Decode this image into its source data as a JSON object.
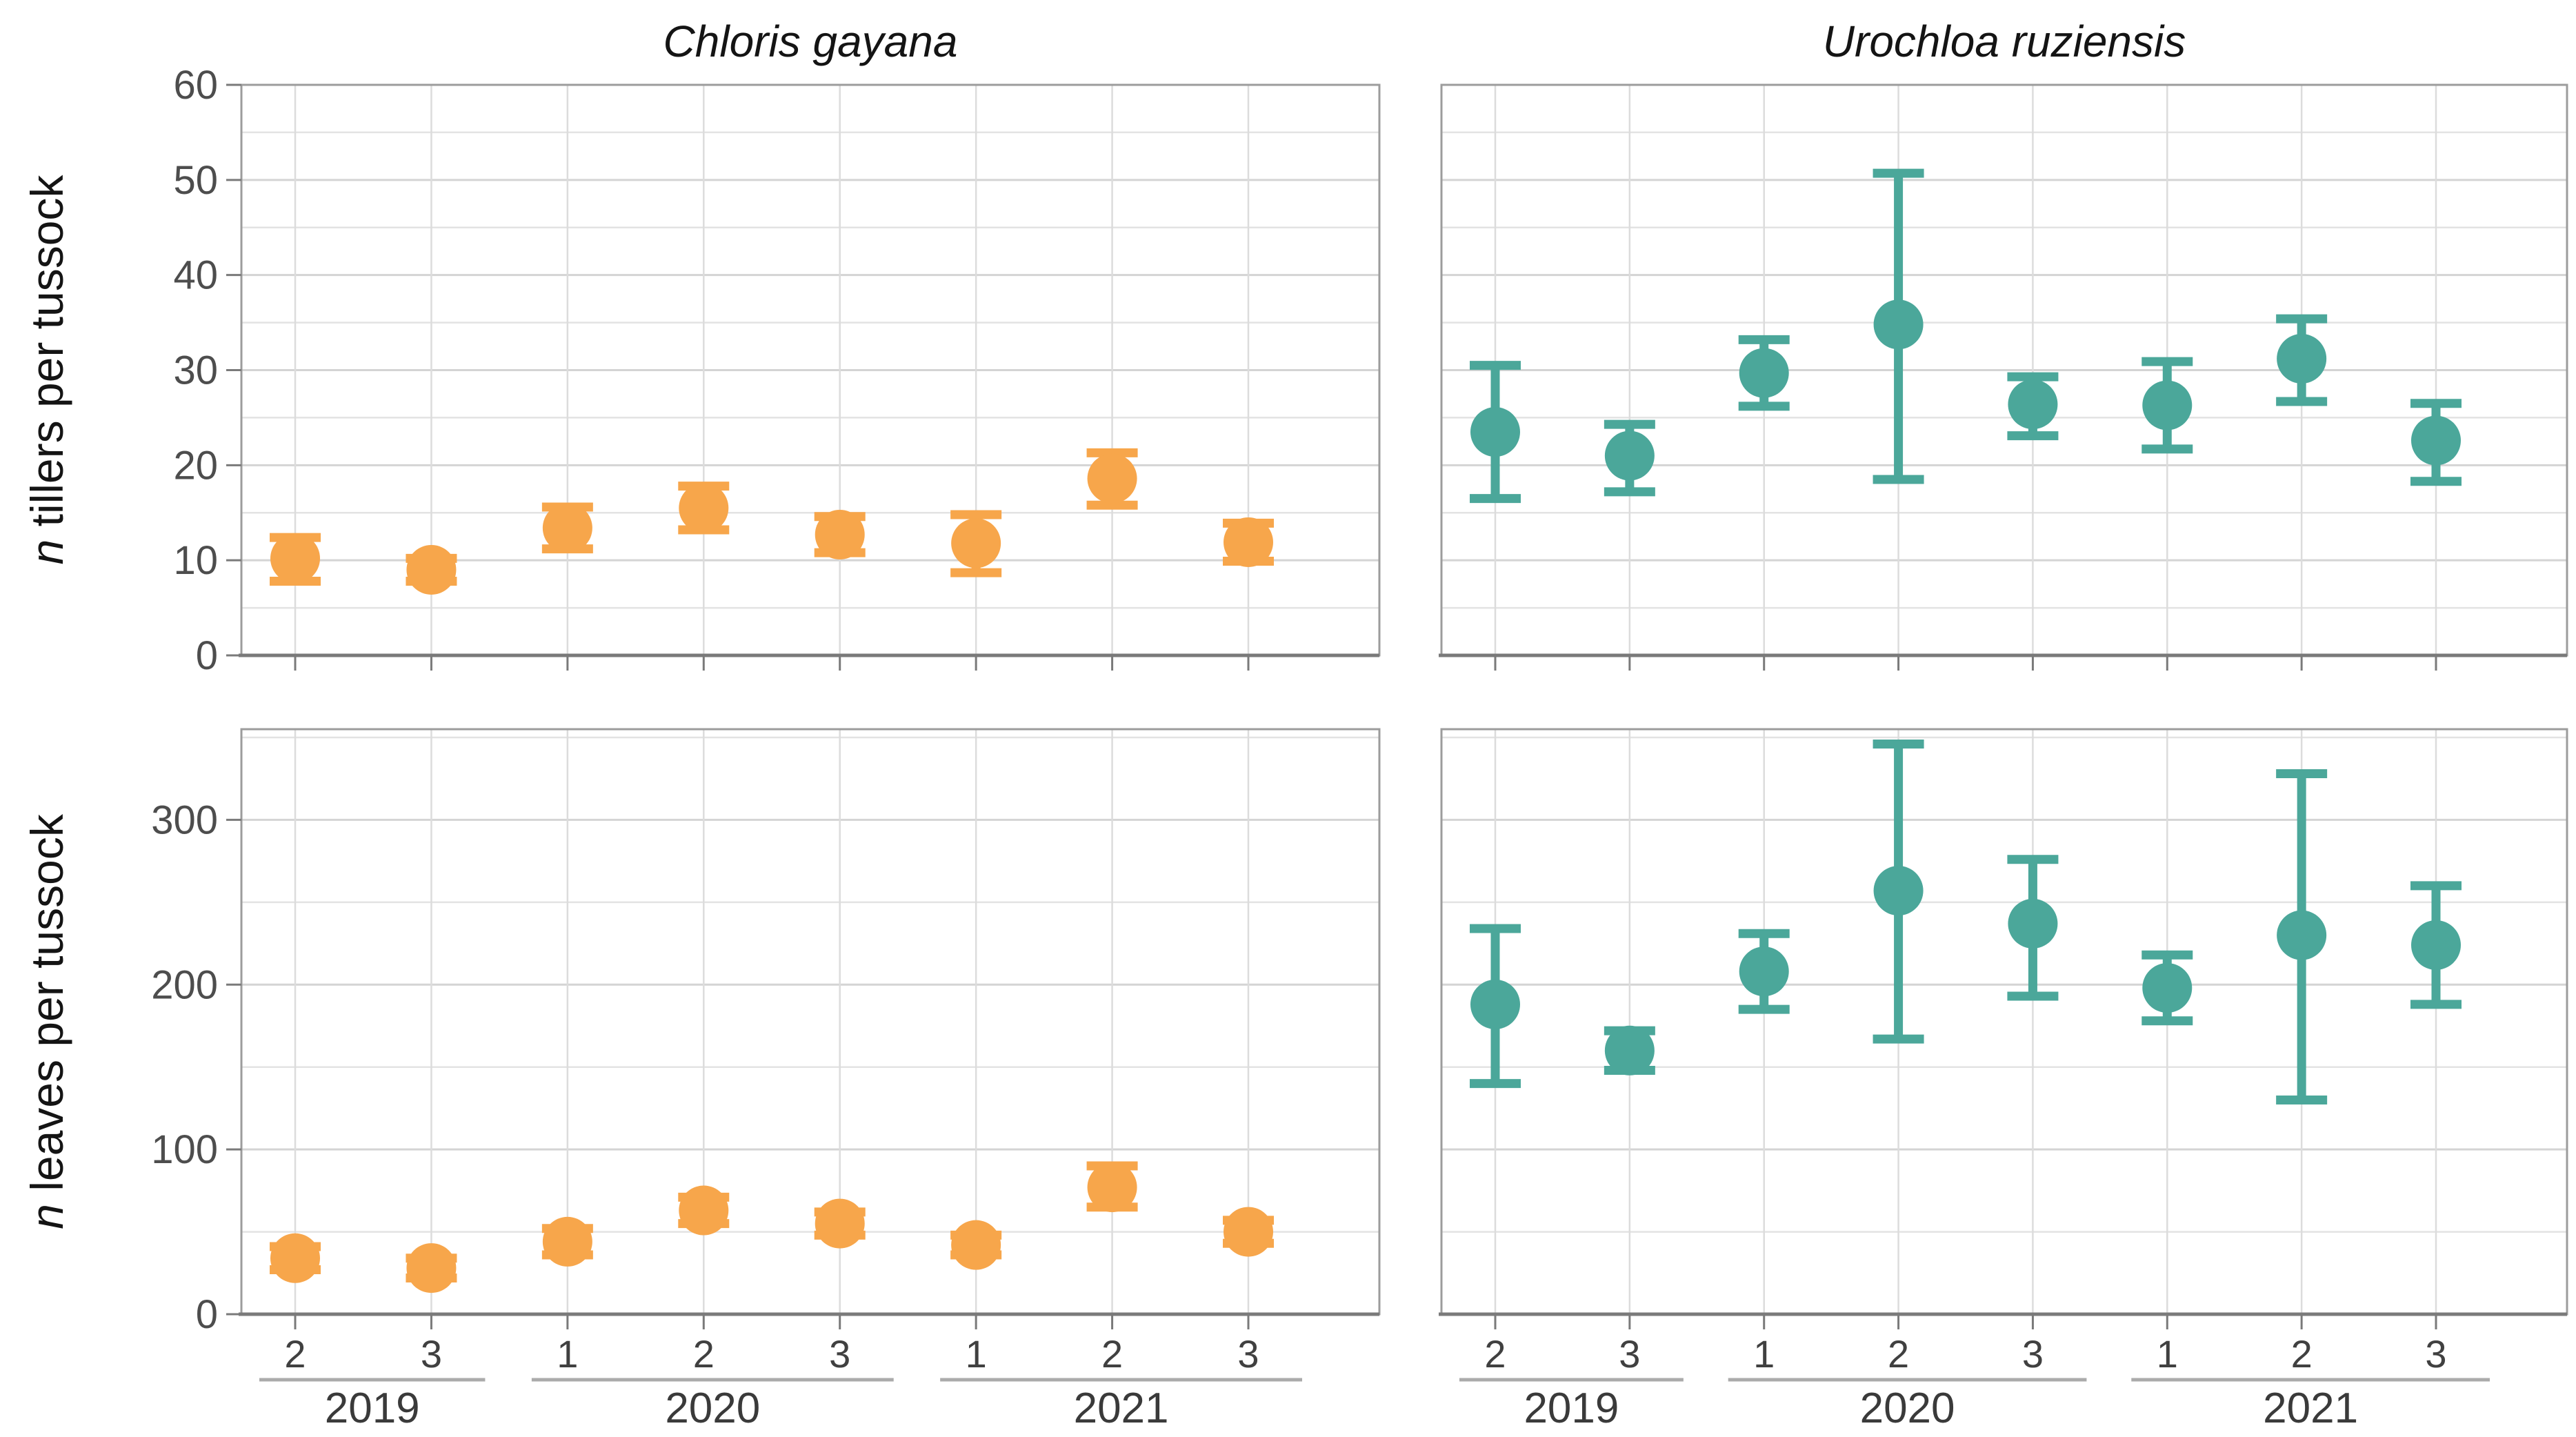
{
  "meta": {
    "facet_titles": [
      "Chloris gayana",
      "Urochloa ruziensis"
    ],
    "ylabel_n": "n",
    "row_ylabels": [
      " tillers per tussock",
      " leaves per tussock"
    ]
  },
  "colors": {
    "chloris_gayana": "#F7A64B",
    "urochloa_ruziensis": "#4BA79A",
    "grid_major": "#D4D4D4",
    "grid_minor": "#E3E3E3",
    "panel_border": "#9C9C9C",
    "axis_line": "#7A7A7A",
    "tick_label": "#4D4D4D",
    "season_label": "#404040",
    "year_label": "#3A3A3A",
    "year_group_line": "#ABABAB"
  },
  "x_axis": {
    "season_labels": [
      "2",
      "3",
      "1",
      "2",
      "3",
      "1",
      "2",
      "3"
    ],
    "year_groups": [
      {
        "label": "2019",
        "from": 0,
        "to": 1
      },
      {
        "label": "2020",
        "from": 2,
        "to": 4
      },
      {
        "label": "2021",
        "from": 5,
        "to": 7
      }
    ]
  },
  "chart_data": [
    {
      "type": "pointrange",
      "row": 0,
      "col": 0,
      "facet": "Chloris gayana",
      "metric": "n tillers per tussock",
      "color_key": "chloris_gayana",
      "x_seasons": [
        "2",
        "3",
        "1",
        "2",
        "3",
        "1",
        "2",
        "3"
      ],
      "x_years": [
        "2019",
        "2019",
        "2020",
        "2020",
        "2020",
        "2021",
        "2021",
        "2021"
      ],
      "mean": [
        10.2,
        9.0,
        13.4,
        15.5,
        12.7,
        11.8,
        18.6,
        11.9
      ],
      "lower": [
        7.8,
        7.8,
        11.2,
        13.2,
        10.8,
        8.7,
        15.8,
        9.9
      ],
      "upper": [
        12.4,
        10.2,
        15.6,
        17.8,
        14.6,
        14.8,
        21.3,
        13.9
      ],
      "ylim": [
        0,
        60
      ],
      "yticks": [
        0,
        10,
        20,
        30,
        40,
        50,
        60
      ],
      "minor_tick_step": 5,
      "grid": true,
      "legend": "none"
    },
    {
      "type": "pointrange",
      "row": 0,
      "col": 1,
      "facet": "Urochloa ruziensis",
      "metric": "n tillers per tussock",
      "color_key": "urochloa_ruziensis",
      "x_seasons": [
        "2",
        "3",
        "1",
        "2",
        "3",
        "1",
        "2",
        "3"
      ],
      "x_years": [
        "2019",
        "2019",
        "2020",
        "2020",
        "2020",
        "2021",
        "2021",
        "2021"
      ],
      "mean": [
        23.5,
        21.0,
        29.7,
        34.8,
        26.4,
        26.3,
        31.2,
        22.6
      ],
      "lower": [
        16.5,
        17.2,
        26.2,
        18.5,
        23.1,
        21.7,
        26.7,
        18.3
      ],
      "upper": [
        30.5,
        24.3,
        33.2,
        50.7,
        29.3,
        30.9,
        35.4,
        26.5
      ],
      "ylim": [
        0,
        60
      ],
      "yticks": [
        0,
        10,
        20,
        30,
        40,
        50,
        60
      ],
      "minor_tick_step": 5,
      "grid": true,
      "legend": "none"
    },
    {
      "type": "pointrange",
      "row": 1,
      "col": 0,
      "facet": "Chloris gayana",
      "metric": "n leaves per tussock",
      "color_key": "chloris_gayana",
      "x_seasons": [
        "2",
        "3",
        "1",
        "2",
        "3",
        "1",
        "2",
        "3"
      ],
      "x_years": [
        "2019",
        "2019",
        "2020",
        "2020",
        "2020",
        "2021",
        "2021",
        "2021"
      ],
      "mean": [
        34,
        28,
        44,
        63,
        55,
        42,
        77,
        50
      ],
      "lower": [
        27,
        22,
        36,
        55,
        48,
        36,
        65,
        43
      ],
      "upper": [
        41,
        34,
        52,
        71,
        62,
        48,
        90,
        57
      ],
      "ylim": [
        0,
        355
      ],
      "yticks": [
        0,
        100,
        200,
        300
      ],
      "minor_tick_step": 50,
      "grid": true,
      "legend": "none"
    },
    {
      "type": "pointrange",
      "row": 1,
      "col": 1,
      "facet": "Urochloa ruziensis",
      "metric": "n leaves per tussock",
      "color_key": "urochloa_ruziensis",
      "x_seasons": [
        "2",
        "3",
        "1",
        "2",
        "3",
        "1",
        "2",
        "3"
      ],
      "x_years": [
        "2019",
        "2019",
        "2020",
        "2020",
        "2020",
        "2021",
        "2021",
        "2021"
      ],
      "mean": [
        188,
        160,
        208,
        257,
        237,
        198,
        230,
        224
      ],
      "lower": [
        140,
        148,
        185,
        167,
        193,
        178,
        130,
        188
      ],
      "upper": [
        234,
        172,
        231,
        346,
        276,
        218,
        328,
        260
      ],
      "ylim": [
        0,
        355
      ],
      "yticks": [
        0,
        100,
        200,
        300
      ],
      "minor_tick_step": 50,
      "grid": true,
      "legend": "none"
    }
  ]
}
